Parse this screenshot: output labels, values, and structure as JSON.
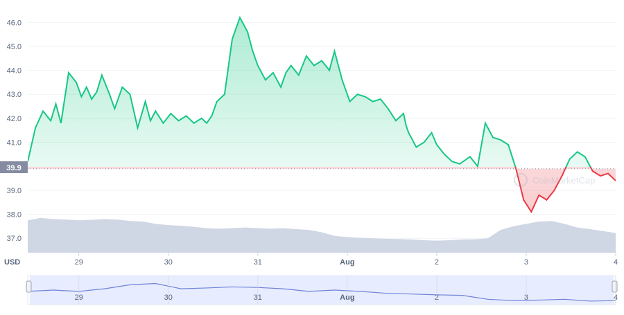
{
  "chart_data": {
    "type": "area",
    "currency_label": "USD",
    "current_price_label": "39.9",
    "watermark": "CoinMarketCap",
    "y_ticks": [
      "46.0",
      "45.0",
      "44.0",
      "43.0",
      "42.0",
      "41.0",
      "39.0",
      "38.0",
      "37.0"
    ],
    "x_ticks": [
      "29",
      "30",
      "31",
      "Aug",
      "2",
      "3",
      "4"
    ],
    "reference_price": 39.9,
    "ylim": [
      36.4,
      46.7
    ],
    "colors": {
      "up": "#16c784",
      "down": "#ea3943",
      "volume": "#cfd6e4",
      "navigator": "#dfe5fd"
    },
    "price_series": {
      "x": [
        0,
        0.3,
        0.6,
        0.9,
        1.1,
        1.3,
        1.6,
        1.9,
        2.1,
        2.3,
        2.5,
        2.7,
        2.9,
        3.2,
        3.4,
        3.7,
        4.0,
        4.3,
        4.6,
        4.8,
        5.0,
        5.3,
        5.6,
        5.9,
        6.2,
        6.5,
        6.8,
        7.0,
        7.2,
        7.4,
        7.7,
        8.0,
        8.3,
        8.6,
        8.8,
        9.0,
        9.3,
        9.6,
        9.9,
        10.1,
        10.3,
        10.6,
        10.9,
        11.2,
        11.5,
        11.8,
        12.0,
        12.3,
        12.6,
        12.9,
        13.2,
        13.5,
        13.8,
        14.1,
        14.4,
        14.7,
        14.8,
        14.9,
        15.1,
        15.2,
        15.5,
        15.8,
        16.0,
        16.3,
        16.6,
        16.9,
        17.3,
        17.6,
        17.9,
        18.2,
        18.5,
        18.8,
        19.1,
        19.4,
        19.7,
        20.0,
        20.3,
        20.6,
        20.9,
        21.2,
        21.5,
        21.8,
        22.1,
        22.4,
        22.7,
        23.0
      ],
      "y": [
        40.2,
        41.6,
        42.3,
        41.9,
        42.6,
        41.8,
        43.9,
        43.5,
        42.9,
        43.3,
        42.8,
        43.1,
        43.8,
        43.0,
        42.4,
        43.3,
        43.0,
        41.6,
        42.7,
        41.9,
        42.3,
        41.8,
        42.2,
        41.9,
        42.1,
        41.8,
        42.0,
        41.8,
        42.1,
        42.7,
        43.0,
        45.3,
        46.2,
        45.6,
        44.8,
        44.2,
        43.6,
        43.9,
        43.3,
        43.9,
        44.2,
        43.8,
        44.6,
        44.2,
        44.4,
        44.0,
        44.8,
        43.6,
        42.7,
        43.0,
        42.9,
        42.7,
        42.8,
        42.4,
        41.9,
        42.2,
        41.7,
        41.4,
        41.0,
        40.8,
        41.0,
        41.4,
        40.9,
        40.5,
        40.2,
        40.1,
        40.4,
        40.0,
        41.8,
        41.2,
        41.1,
        40.9,
        39.9,
        38.6,
        38.1,
        38.8,
        38.6,
        39.0,
        39.6,
        40.3,
        40.6,
        40.4,
        39.8,
        39.6,
        39.7,
        39.4
      ]
    },
    "volume_series": {
      "x": [
        0,
        0.5,
        1.0,
        1.5,
        2.0,
        2.5,
        3.0,
        3.5,
        4.0,
        4.5,
        5.0,
        5.5,
        6.0,
        6.5,
        7.0,
        7.5,
        8.0,
        8.5,
        9.0,
        9.5,
        10.0,
        10.5,
        11.0,
        11.5,
        12.0,
        12.5,
        13.0,
        13.5,
        14.0,
        14.5,
        15.0,
        15.5,
        16.0,
        16.5,
        17.0,
        17.5,
        18.0,
        18.5,
        19.0,
        19.5,
        20.0,
        20.5,
        21.0,
        21.5,
        22.0,
        22.5,
        23.0
      ],
      "y": [
        37.75,
        37.85,
        37.8,
        37.78,
        37.75,
        37.77,
        37.8,
        37.78,
        37.72,
        37.7,
        37.6,
        37.55,
        37.52,
        37.48,
        37.42,
        37.4,
        37.42,
        37.45,
        37.42,
        37.4,
        37.42,
        37.38,
        37.35,
        37.25,
        37.1,
        37.05,
        37.02,
        37.0,
        36.98,
        36.97,
        36.95,
        36.92,
        36.9,
        36.92,
        36.95,
        36.96,
        37.0,
        37.35,
        37.5,
        37.6,
        37.7,
        37.72,
        37.6,
        37.45,
        37.38,
        37.3,
        37.22
      ]
    },
    "navigator_series": {
      "x": [
        0,
        1,
        2,
        3,
        4,
        5,
        6,
        7,
        8,
        9,
        10,
        11,
        12,
        13,
        14,
        15,
        16,
        17,
        18,
        19,
        20,
        21,
        22,
        23
      ],
      "y": [
        0.55,
        0.5,
        0.55,
        0.45,
        0.3,
        0.25,
        0.45,
        0.42,
        0.38,
        0.4,
        0.45,
        0.55,
        0.5,
        0.55,
        0.62,
        0.65,
        0.68,
        0.7,
        0.85,
        0.9,
        0.88,
        0.85,
        0.92,
        0.9
      ]
    },
    "grid": true
  }
}
